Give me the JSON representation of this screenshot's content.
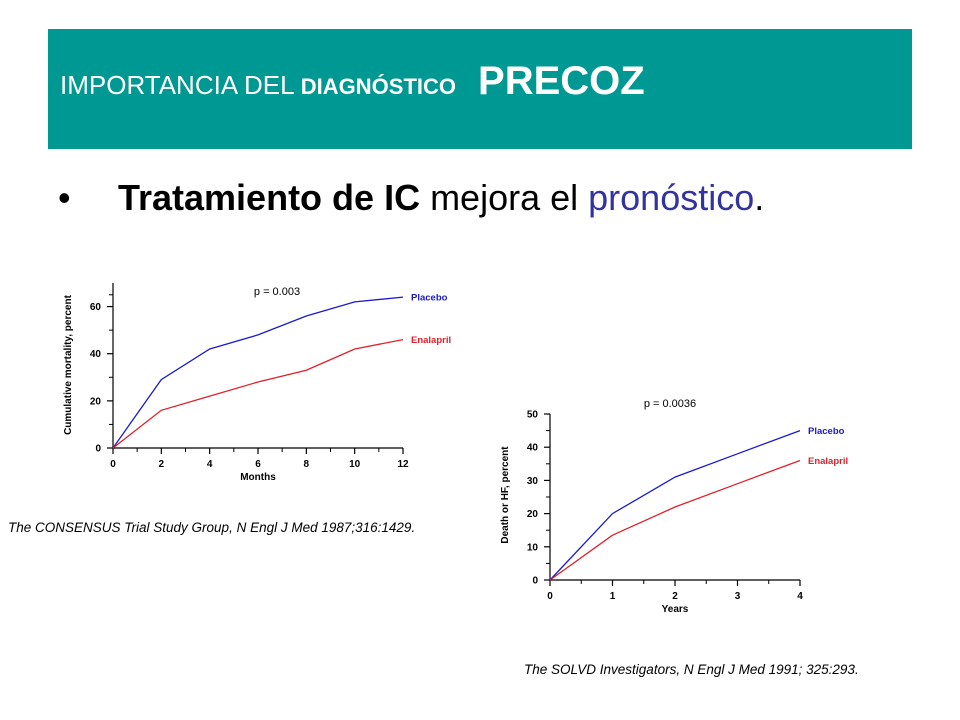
{
  "slide": {
    "title_part1": "IMPORTANCIA DEL ",
    "title_part2": "DIAGNÓSTICO",
    "title_part3": "PRECOZ",
    "bullet_symbol": "•",
    "bullet_bold": "Tratamiento de IC",
    "bullet_middle": " mejora el ",
    "bullet_accent": "pronóstico",
    "bullet_end": ".",
    "citation_left": "The CONSENSUS Trial Study Group, N Engl J Med 1987;316:1429.",
    "citation_right": "The SOLVD Investigators, N Engl J Med 1991; 325:293."
  },
  "colors": {
    "banner": "#009892",
    "accent_text": "#3333a0",
    "placebo": "#1a1acc",
    "enalapril": "#e0202a"
  },
  "chart_data": [
    {
      "type": "line",
      "annotation": "p = 0.003",
      "xlabel": "Months",
      "ylabel": "Cumulative mortality, percent",
      "x_ticks": [
        0,
        2,
        4,
        6,
        8,
        10,
        12
      ],
      "y_ticks": [
        0,
        20,
        40,
        60
      ],
      "xlim": [
        0,
        12
      ],
      "ylim": [
        0,
        70
      ],
      "series": [
        {
          "name": "Placebo",
          "color_key": "placebo",
          "x": [
            0,
            2,
            4,
            6,
            8,
            10,
            12
          ],
          "y": [
            0,
            29,
            42,
            48,
            56,
            62,
            64
          ]
        },
        {
          "name": "Enalapril",
          "color_key": "enalapril",
          "x": [
            0,
            2,
            4,
            6,
            8,
            10,
            12
          ],
          "y": [
            0,
            16,
            22,
            28,
            33,
            42,
            46
          ]
        }
      ]
    },
    {
      "type": "line",
      "annotation": "p = 0.0036",
      "xlabel": "Years",
      "ylabel": "Death or HF, percent",
      "x_ticks": [
        0,
        1,
        2,
        3,
        4
      ],
      "y_ticks": [
        0,
        10,
        20,
        30,
        40,
        50
      ],
      "xlim": [
        0,
        4
      ],
      "ylim": [
        0,
        50
      ],
      "series": [
        {
          "name": "Placebo",
          "color_key": "placebo",
          "x": [
            0,
            1,
            2,
            3,
            4
          ],
          "y": [
            0,
            20,
            31,
            38,
            45
          ]
        },
        {
          "name": "Enalapril",
          "color_key": "enalapril",
          "x": [
            0,
            1,
            2,
            3,
            4
          ],
          "y": [
            0,
            13.5,
            22,
            29,
            36
          ]
        }
      ]
    }
  ]
}
